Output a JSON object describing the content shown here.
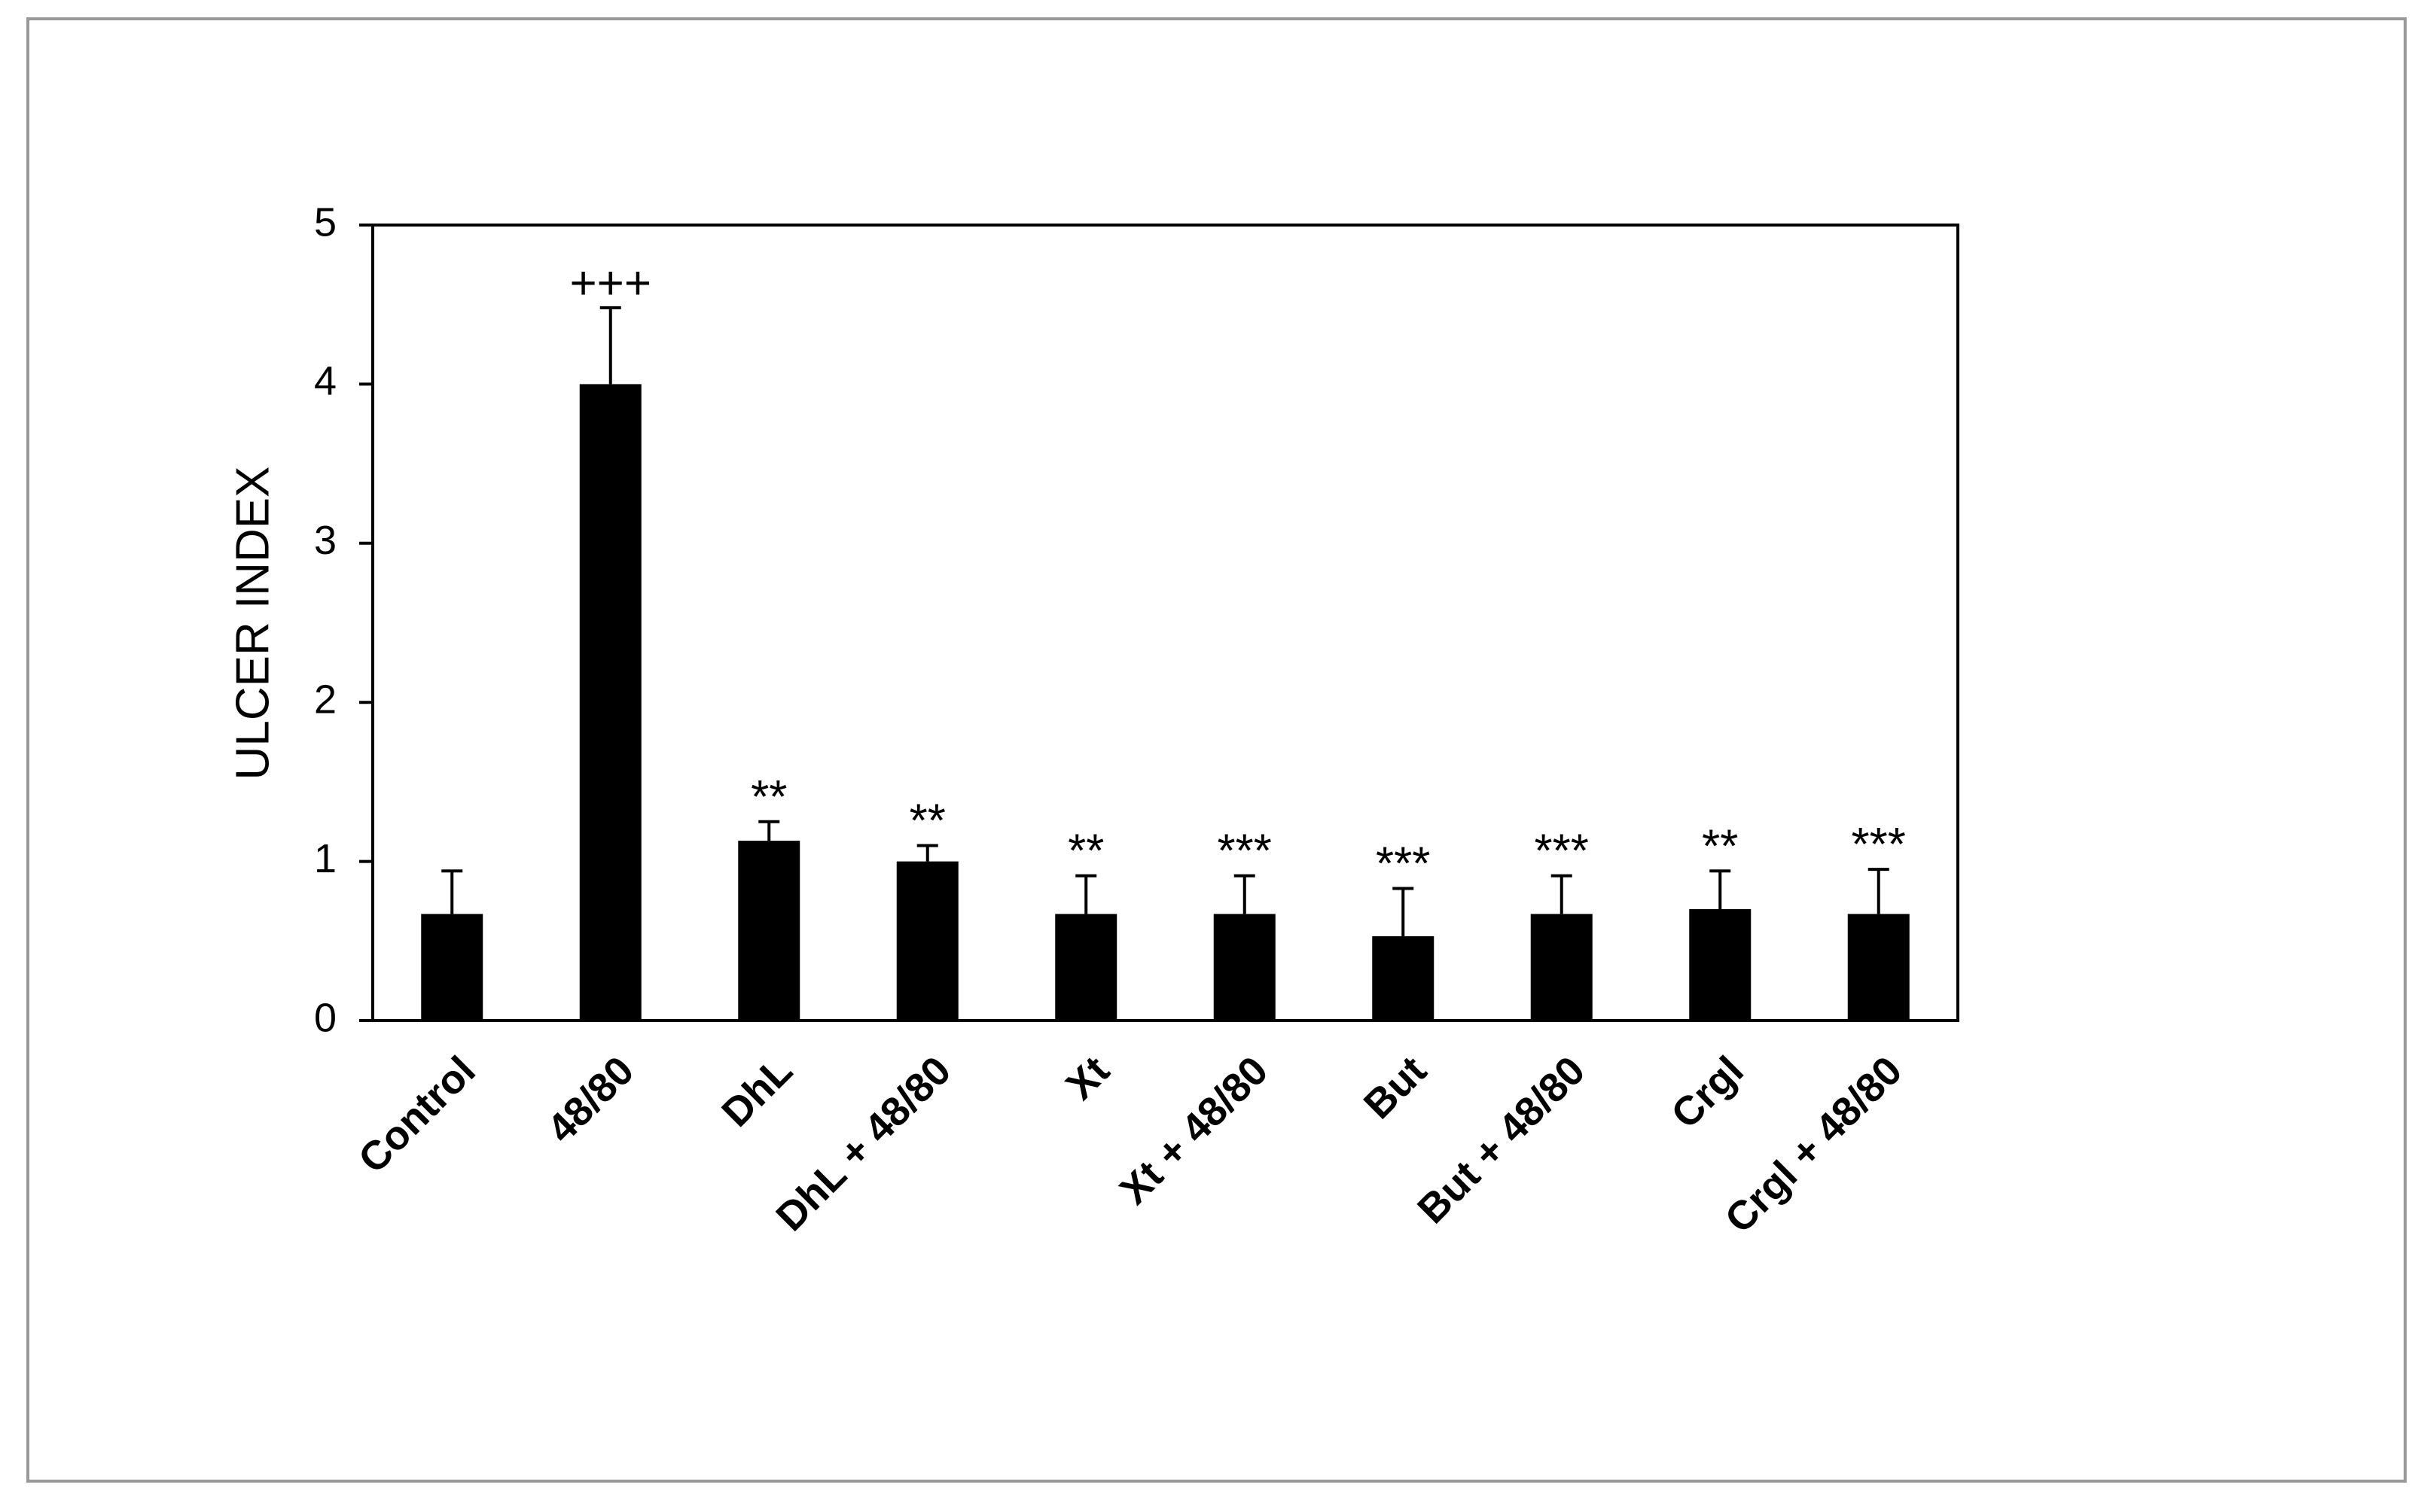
{
  "chart_data": {
    "type": "bar",
    "y_label": "ULCER INDEX",
    "categories": [
      "Control",
      "48/80",
      "DhL",
      "DhL + 48/80",
      "Xt",
      "Xt + 48/80",
      "But",
      "But + 48/80",
      "Crgl",
      "Crgl + 48/80"
    ],
    "values": [
      0.67,
      4.0,
      1.13,
      1.0,
      0.67,
      0.67,
      0.53,
      0.67,
      0.7,
      0.67
    ],
    "errors": [
      0.27,
      0.48,
      0.12,
      0.1,
      0.24,
      0.24,
      0.3,
      0.24,
      0.24,
      0.28
    ],
    "annotations": [
      null,
      "+++",
      "**",
      "**",
      "**",
      "***",
      "***",
      "***",
      "**",
      "***"
    ],
    "color": "#000000",
    "ylim": [
      0,
      5
    ],
    "yticks": [
      0,
      1,
      2,
      3,
      4,
      5
    ],
    "grid": false
  }
}
